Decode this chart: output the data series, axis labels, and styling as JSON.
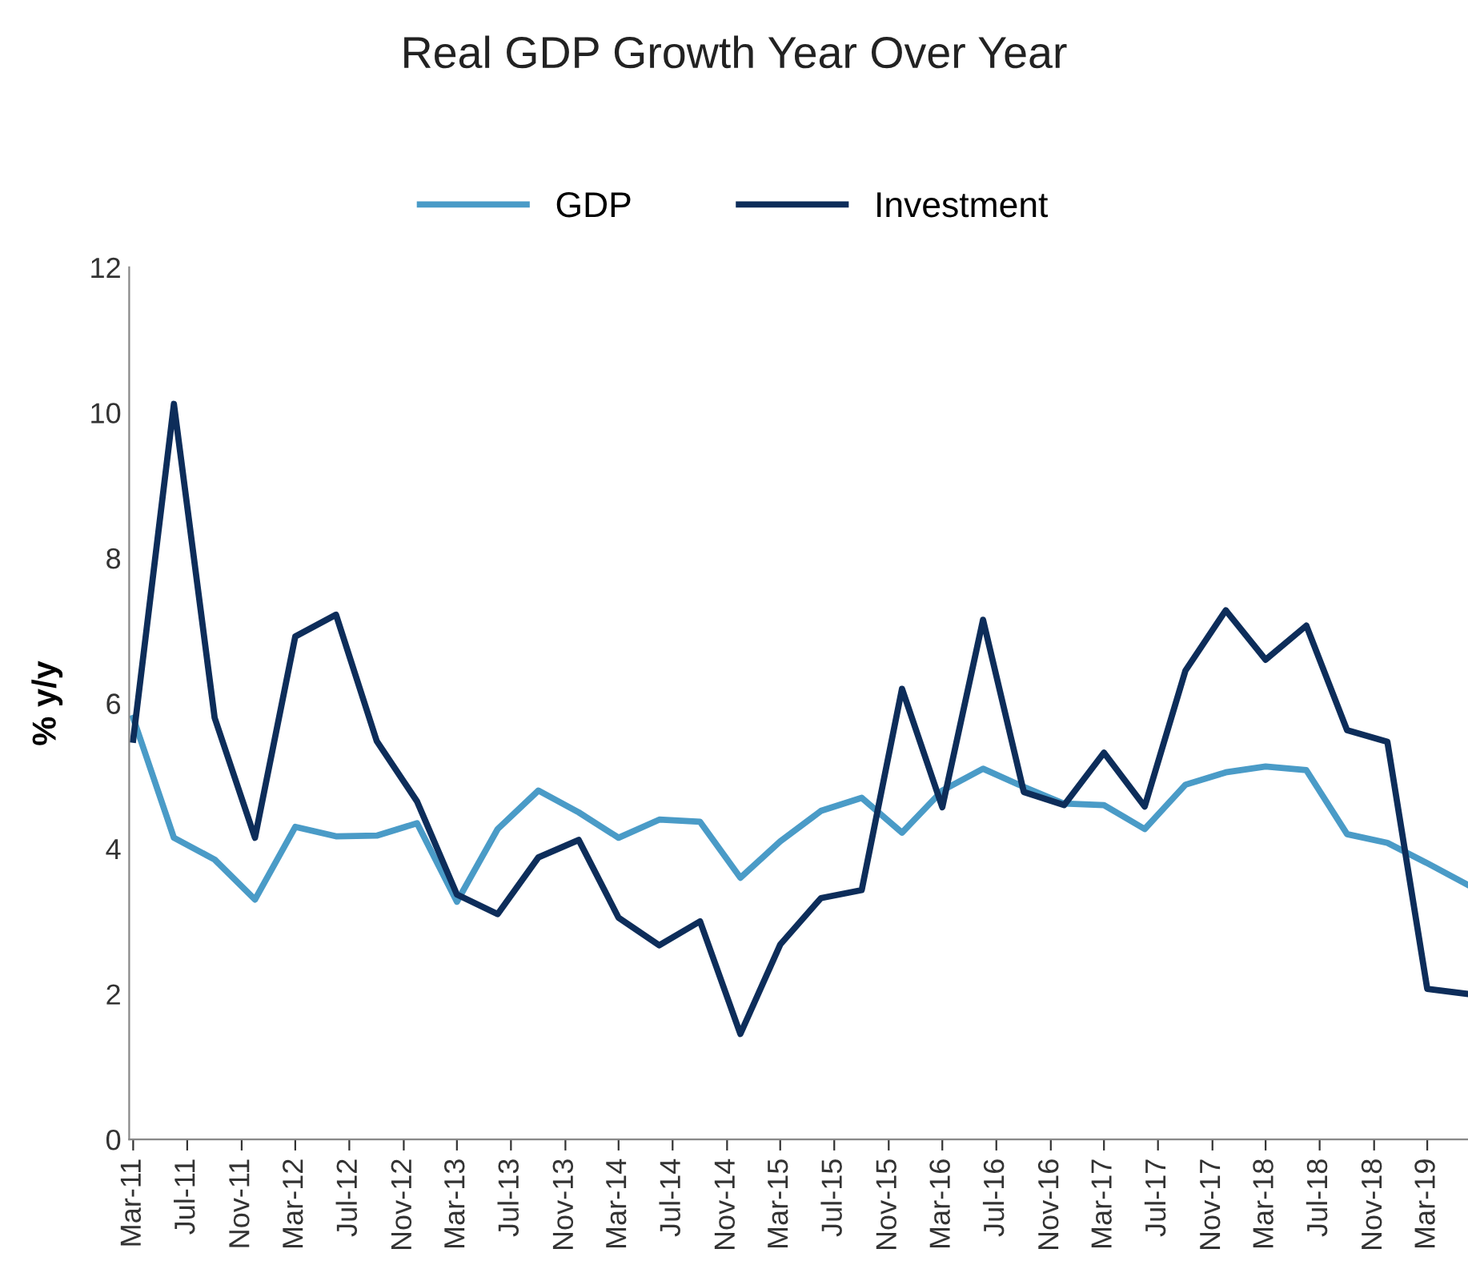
{
  "chart_data": {
    "type": "line",
    "title": "Real GDP Growth Year Over Year",
    "ylabel": "% y/y",
    "x": [
      "2011-03",
      "2011-06",
      "2011-09",
      "2011-12",
      "2012-03",
      "2012-06",
      "2012-09",
      "2012-12",
      "2013-03",
      "2013-06",
      "2013-09",
      "2013-12",
      "2014-03",
      "2014-06",
      "2014-09",
      "2014-12",
      "2015-03",
      "2015-06",
      "2015-09",
      "2015-12",
      "2016-03",
      "2016-06",
      "2016-09",
      "2016-12",
      "2017-03",
      "2017-06",
      "2017-09",
      "2017-12",
      "2018-03",
      "2018-06",
      "2018-09",
      "2018-12",
      "2019-03",
      "2019-06"
    ],
    "series": [
      {
        "name": "GDP",
        "color": "#4a9bc7",
        "values": [
          5.8,
          4.15,
          3.85,
          3.3,
          4.3,
          4.17,
          4.18,
          4.35,
          3.27,
          4.27,
          4.8,
          4.5,
          4.15,
          4.4,
          4.37,
          3.6,
          4.1,
          4.52,
          4.7,
          4.22,
          4.8,
          5.1,
          4.85,
          4.62,
          4.6,
          4.27,
          4.88,
          5.05,
          5.13,
          5.08,
          4.2,
          4.08,
          3.8,
          3.5
        ]
      },
      {
        "name": "Investment",
        "color": "#0d2d5a",
        "values": [
          5.5,
          10.12,
          5.8,
          4.15,
          6.92,
          7.22,
          5.48,
          4.65,
          3.37,
          3.1,
          3.88,
          4.12,
          3.05,
          2.67,
          3.0,
          1.45,
          2.68,
          3.32,
          3.43,
          6.2,
          4.57,
          7.15,
          4.78,
          4.6,
          5.32,
          4.58,
          6.45,
          7.28,
          6.6,
          7.07,
          5.63,
          5.47,
          2.07,
          2.0
        ]
      }
    ],
    "xlim": [
      "2011-02-20",
      "2019-06"
    ],
    "xticks": [
      {
        "value": "2011-03",
        "label": "Mar-11"
      },
      {
        "value": "2011-07",
        "label": "Jul-11"
      },
      {
        "value": "2011-11",
        "label": "Nov-11"
      },
      {
        "value": "2012-03",
        "label": "Mar-12"
      },
      {
        "value": "2012-07",
        "label": "Jul-12"
      },
      {
        "value": "2012-11",
        "label": "Nov-12"
      },
      {
        "value": "2013-03",
        "label": "Mar-13"
      },
      {
        "value": "2013-07",
        "label": "Jul-13"
      },
      {
        "value": "2013-11",
        "label": "Nov-13"
      },
      {
        "value": "2014-03",
        "label": "Mar-14"
      },
      {
        "value": "2014-07",
        "label": "Jul-14"
      },
      {
        "value": "2014-11",
        "label": "Nov-14"
      },
      {
        "value": "2015-03",
        "label": "Mar-15"
      },
      {
        "value": "2015-07",
        "label": "Jul-15"
      },
      {
        "value": "2015-11",
        "label": "Nov-15"
      },
      {
        "value": "2016-03",
        "label": "Mar-16"
      },
      {
        "value": "2016-07",
        "label": "Jul-16"
      },
      {
        "value": "2016-11",
        "label": "Nov-16"
      },
      {
        "value": "2017-03",
        "label": "Mar-17"
      },
      {
        "value": "2017-07",
        "label": "Jul-17"
      },
      {
        "value": "2017-11",
        "label": "Nov-17"
      },
      {
        "value": "2018-03",
        "label": "Mar-18"
      },
      {
        "value": "2018-07",
        "label": "Jul-18"
      },
      {
        "value": "2018-11",
        "label": "Nov-18"
      },
      {
        "value": "2019-03",
        "label": "Mar-19"
      }
    ],
    "ylim": [
      0,
      12
    ],
    "yticks": [
      0,
      2,
      4,
      6,
      8,
      10,
      12
    ],
    "grid": false,
    "legend": "top",
    "marker": "none",
    "line_style": "solid"
  }
}
